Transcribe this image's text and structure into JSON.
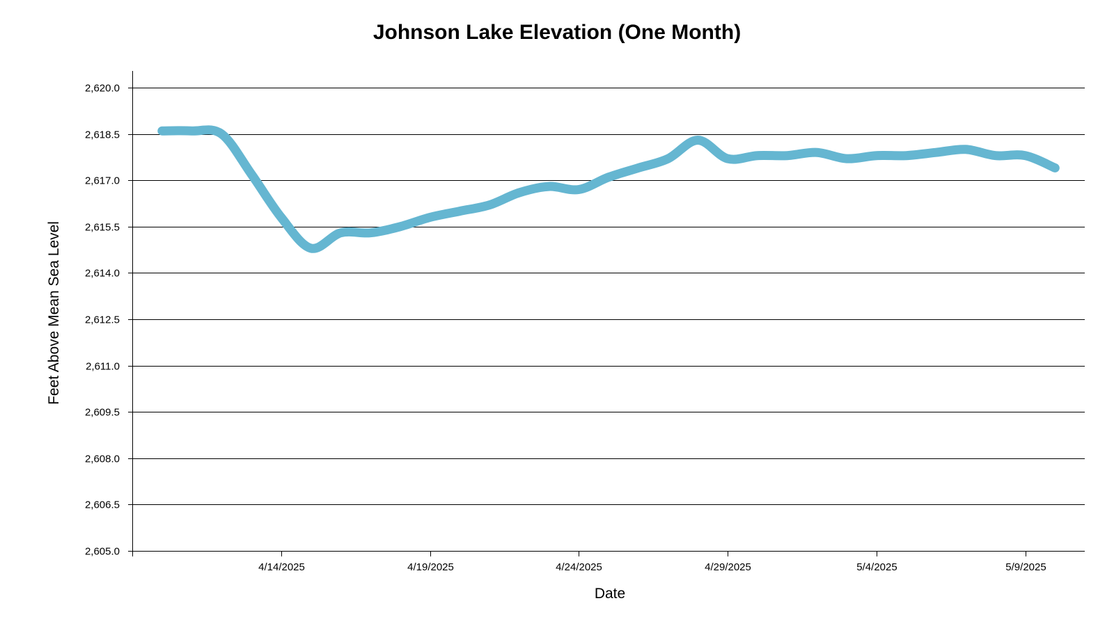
{
  "chart_data": {
    "type": "line",
    "title": "Johnson Lake Elevation (One Month)",
    "xlabel": "Date",
    "ylabel": "Feet Above Mean Sea Level",
    "ylim": [
      2605.0,
      2620.0
    ],
    "xlim": [
      "2025-04-09",
      "2025-05-11"
    ],
    "y_ticks": [
      2605.0,
      2606.5,
      2608.0,
      2609.5,
      2611.0,
      2612.5,
      2614.0,
      2615.5,
      2617.0,
      2618.5,
      2620.0
    ],
    "y_tick_labels": [
      "2,605.0",
      "2,606.5",
      "2,608.0",
      "2,609.5",
      "2,611.0",
      "2,612.5",
      "2,614.0",
      "2,615.5",
      "2,617.0",
      "2,618.5",
      "2,620.0"
    ],
    "x_ticks": [
      "2025-04-14",
      "2025-04-19",
      "2025-04-24",
      "2025-04-29",
      "2025-05-04",
      "2025-05-09"
    ],
    "x_tick_labels": [
      "4/14/2025",
      "4/19/2025",
      "4/24/2025",
      "4/29/2025",
      "5/4/2025",
      "5/9/2025"
    ],
    "grid": true,
    "legend": false,
    "line_color": "#65b6d1",
    "series": [
      {
        "x": [
          "2025-04-10",
          "2025-04-11",
          "2025-04-12",
          "2025-04-13",
          "2025-04-14",
          "2025-04-15",
          "2025-04-16",
          "2025-04-17",
          "2025-04-18",
          "2025-04-19",
          "2025-04-20",
          "2025-04-21",
          "2025-04-22",
          "2025-04-23",
          "2025-04-24",
          "2025-04-25",
          "2025-04-26",
          "2025-04-27",
          "2025-04-28",
          "2025-04-29",
          "2025-04-30",
          "2025-05-01",
          "2025-05-02",
          "2025-05-03",
          "2025-05-04",
          "2025-05-05",
          "2025-05-06",
          "2025-05-07",
          "2025-05-08",
          "2025-05-09",
          "2025-05-10"
        ],
        "values": [
          2618.6,
          2618.6,
          2618.5,
          2617.2,
          2615.8,
          2614.8,
          2615.3,
          2615.3,
          2615.5,
          2615.8,
          2616.0,
          2616.2,
          2616.6,
          2616.8,
          2616.7,
          2617.1,
          2617.4,
          2617.7,
          2618.3,
          2617.7,
          2617.8,
          2617.8,
          2617.9,
          2617.7,
          2617.8,
          2617.8,
          2617.9,
          2618.0,
          2617.8,
          2617.8,
          2617.4
        ]
      }
    ]
  }
}
